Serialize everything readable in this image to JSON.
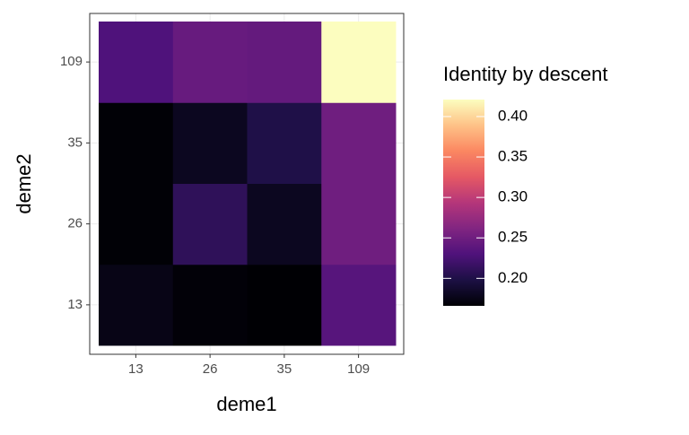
{
  "chart_data": {
    "type": "heatmap",
    "x_label": "deme1",
    "y_label": "deme2",
    "x_categories": [
      "13",
      "26",
      "35",
      "109"
    ],
    "y_categories": [
      "13",
      "26",
      "35",
      "109"
    ],
    "values": [
      [
        0.175,
        0.168,
        0.166,
        0.235
      ],
      [
        0.167,
        0.21,
        0.18,
        0.25
      ],
      [
        0.167,
        0.18,
        0.2,
        0.25
      ],
      [
        0.23,
        0.245,
        0.243,
        0.421
      ]
    ],
    "legend_title": "Identity by descent",
    "clim": [
      0.166,
      0.421
    ],
    "cticks": [
      {
        "value": 0.2,
        "label": "0.20"
      },
      {
        "value": 0.25,
        "label": "0.25"
      },
      {
        "value": 0.3,
        "label": "0.30"
      },
      {
        "value": 0.35,
        "label": "0.35"
      },
      {
        "value": 0.4,
        "label": "0.40"
      }
    ],
    "colorscale": [
      "#000004",
      "#1c1044",
      "#4f127b",
      "#812581",
      "#b5367a",
      "#e55964",
      "#fb8761",
      "#fec287",
      "#fcfdbf"
    ],
    "grid": true
  }
}
